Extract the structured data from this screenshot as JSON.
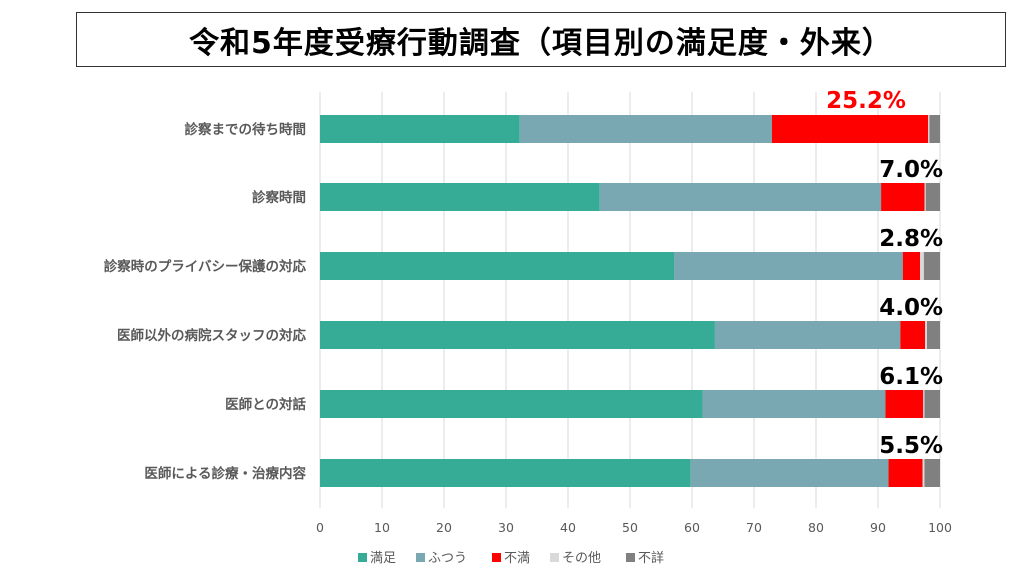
{
  "chart_data": {
    "type": "bar",
    "orientation": "horizontal",
    "stacked": true,
    "title": "令和5年度受療行動調査（項目別の満足度・外来）",
    "categories": [
      "診察までの待ち時間",
      "診察時間",
      "診察時のプライバシー保護の対応",
      "医師以外の病院スタッフの対応",
      "医師との対話",
      "医師による診療・治療内容"
    ],
    "series": [
      {
        "name": "満足",
        "color": "#36AC96",
        "values": [
          32.2,
          45.1,
          57.1,
          63.7,
          61.7,
          59.8
        ]
      },
      {
        "name": "ふつう",
        "color": "#79A8B2",
        "values": [
          40.7,
          45.4,
          36.9,
          29.9,
          29.5,
          31.9
        ]
      },
      {
        "name": "不満",
        "color": "#FF0000",
        "values": [
          25.2,
          7.0,
          2.8,
          4.0,
          6.1,
          5.5
        ]
      },
      {
        "name": "その他",
        "color": "#D9D9D9",
        "values": [
          0.2,
          0.2,
          0.6,
          0.3,
          0.2,
          0.3
        ]
      },
      {
        "name": "不詳",
        "color": "#808080",
        "values": [
          1.7,
          2.3,
          2.6,
          2.1,
          2.5,
          2.5
        ]
      }
    ],
    "annotations": [
      {
        "text": "25.2%",
        "color": "#FF0000"
      },
      {
        "text": "7.0%",
        "color": "#000000"
      },
      {
        "text": "2.8%",
        "color": "#000000"
      },
      {
        "text": "4.0%",
        "color": "#000000"
      },
      {
        "text": "6.1%",
        "color": "#000000"
      },
      {
        "text": "5.5%",
        "color": "#000000"
      }
    ],
    "xlim": [
      0,
      100
    ],
    "xticks": [
      "0",
      "10",
      "20",
      "30",
      "40",
      "50",
      "60",
      "70",
      "80",
      "90",
      "100"
    ],
    "grid": true,
    "legend": "bottom"
  }
}
